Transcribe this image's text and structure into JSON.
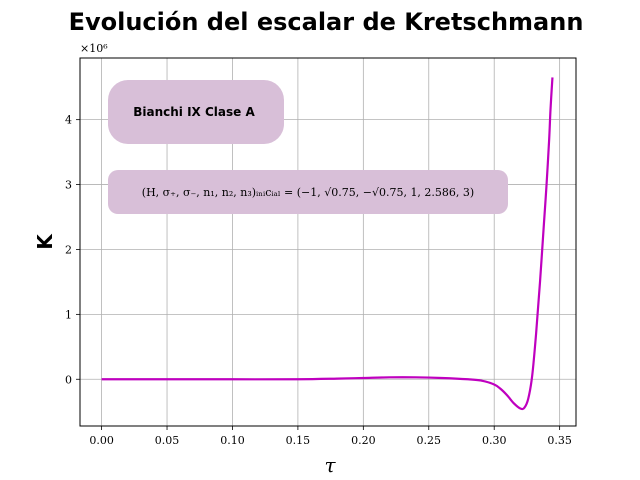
{
  "chart_data": {
    "type": "line",
    "title": "Evolución del escalar de Kretschmann",
    "xlabel": "τ",
    "ylabel": "K",
    "y_offset_text": "×10⁶",
    "xlim": [
      -0.0165,
      0.3625
    ],
    "ylim": [
      -0.72,
      4.95
    ],
    "grid": true,
    "x_ticks": [
      0.0,
      0.05,
      0.1,
      0.15,
      0.2,
      0.25,
      0.3,
      0.35
    ],
    "x_tick_labels": [
      "0.00",
      "0.05",
      "0.10",
      "0.15",
      "0.20",
      "0.25",
      "0.30",
      "0.35"
    ],
    "y_ticks": [
      0,
      1,
      2,
      3,
      4
    ],
    "y_tick_labels": [
      "0",
      "1",
      "2",
      "3",
      "4"
    ],
    "series": [
      {
        "color": "#bf00bf",
        "x": [
          0.0,
          0.05,
          0.1,
          0.15,
          0.18,
          0.2,
          0.22,
          0.24,
          0.26,
          0.28,
          0.29,
          0.3,
          0.305,
          0.31,
          0.315,
          0.32,
          0.323,
          0.326,
          0.329,
          0.332,
          0.335,
          0.338,
          0.34,
          0.342,
          0.343,
          0.3445
        ],
        "y": [
          0.0,
          0.0,
          0.0,
          0.0,
          0.01,
          0.02,
          0.03,
          0.03,
          0.02,
          0.0,
          -0.02,
          -0.08,
          -0.15,
          -0.25,
          -0.37,
          -0.45,
          -0.44,
          -0.3,
          0.05,
          0.7,
          1.5,
          2.4,
          3.0,
          3.7,
          4.15,
          4.65
        ]
      }
    ],
    "annotations": [
      {
        "text": "Bianchi IX Clase A",
        "background": "#d8bfd8"
      },
      {
        "text": "(H, σ₊, σ₋, n₁, n₂, n₃)ᵢₙᵢcᵢₐₗ = (−1, √0.75, −√0.75, 1, 2.586, 3)",
        "background": "#d8bfd8"
      }
    ]
  }
}
